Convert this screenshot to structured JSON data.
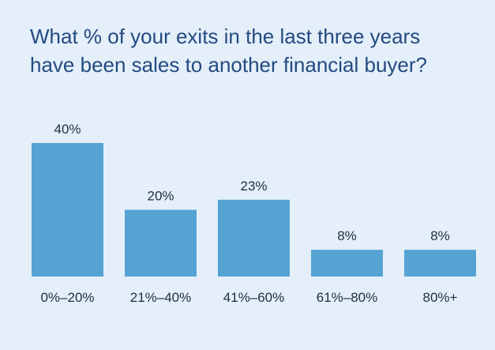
{
  "title_lines": [
    "What % of your exits in the last three years",
    "have been sales to another financial buyer?"
  ],
  "colors": {
    "background": "#e4eff9",
    "bar": "#55a3d3",
    "title_text": "#244a82",
    "label_text": "#1f2f3f"
  },
  "chart_data": {
    "type": "bar",
    "title": "What % of your exits in the last three years have been sales to another financial buyer?",
    "categories": [
      "0%–20%",
      "21%–40%",
      "41%–60%",
      "61%–80%",
      "80%+"
    ],
    "values": [
      40,
      20,
      23,
      8,
      8
    ],
    "data_labels": [
      "40%",
      "20%",
      "23%",
      "8%",
      "8%"
    ],
    "xlabel": "",
    "ylabel": "",
    "ylim": [
      0,
      40
    ],
    "grid": false,
    "legend": "none"
  }
}
